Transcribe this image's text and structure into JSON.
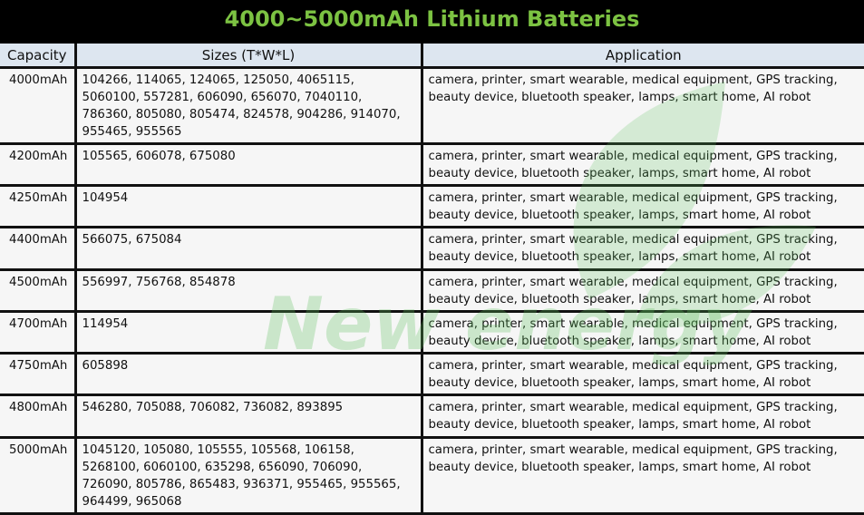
{
  "title": "4000~5000mAh Lithium Batteries",
  "headers": {
    "capacity": "Capacity",
    "sizes": "Sizes (T*W*L)",
    "application": "Application"
  },
  "watermark": "New energy",
  "colors": {
    "title_text": "#7cc242",
    "title_bg": "#000000",
    "header_bg": "#dde6f0",
    "watermark": "#5cbf5a"
  },
  "rows": [
    {
      "capacity": "4000mAh",
      "sizes": "104266, 114065, 124065, 125050, 4065115, 5060100, 557281, 606090, 656070, 7040110, 786360, 805080, 805474, 824578, 904286, 914070, 955465, 955565",
      "application": "camera, printer, smart wearable, medical equipment, GPS tracking, beauty device, bluetooth speaker, lamps, smart home, AI robot"
    },
    {
      "capacity": "4200mAh",
      "sizes": "105565, 606078, 675080",
      "application": "camera, printer, smart wearable, medical equipment, GPS tracking, beauty device, bluetooth speaker, lamps, smart home, AI robot"
    },
    {
      "capacity": "4250mAh",
      "sizes": "104954",
      "application": "camera, printer, smart wearable, medical equipment, GPS tracking, beauty device, bluetooth speaker, lamps, smart home, AI robot"
    },
    {
      "capacity": "4400mAh",
      "sizes": "566075, 675084",
      "application": "camera, printer, smart wearable, medical equipment, GPS tracking, beauty device, bluetooth speaker, lamps, smart home, AI robot"
    },
    {
      "capacity": "4500mAh",
      "sizes": "556997, 756768, 854878",
      "application": "camera, printer, smart wearable, medical equipment, GPS tracking, beauty device, bluetooth speaker, lamps, smart home, AI robot"
    },
    {
      "capacity": "4700mAh",
      "sizes": "114954",
      "application": "camera, printer, smart wearable, medical equipment, GPS tracking, beauty device, bluetooth speaker, lamps, smart home, AI robot"
    },
    {
      "capacity": "4750mAh",
      "sizes": "605898",
      "application": "camera, printer, smart wearable, medical equipment, GPS tracking, beauty device, bluetooth speaker, lamps, smart home, AI robot"
    },
    {
      "capacity": "4800mAh",
      "sizes": "546280, 705088, 706082, 736082, 893895",
      "application": "camera, printer, smart wearable, medical equipment, GPS tracking, beauty device, bluetooth speaker, lamps, smart home, AI robot"
    },
    {
      "capacity": "5000mAh",
      "sizes": "1045120, 105080, 105555, 105568, 106158, 5268100, 6060100, 635298, 656090, 706090, 726090, 805786, 865483, 936371, 955465, 955565, 964499, 965068",
      "application": "camera, printer, smart wearable, medical equipment, GPS tracking, beauty device, bluetooth speaker, lamps, smart home, AI robot"
    }
  ]
}
